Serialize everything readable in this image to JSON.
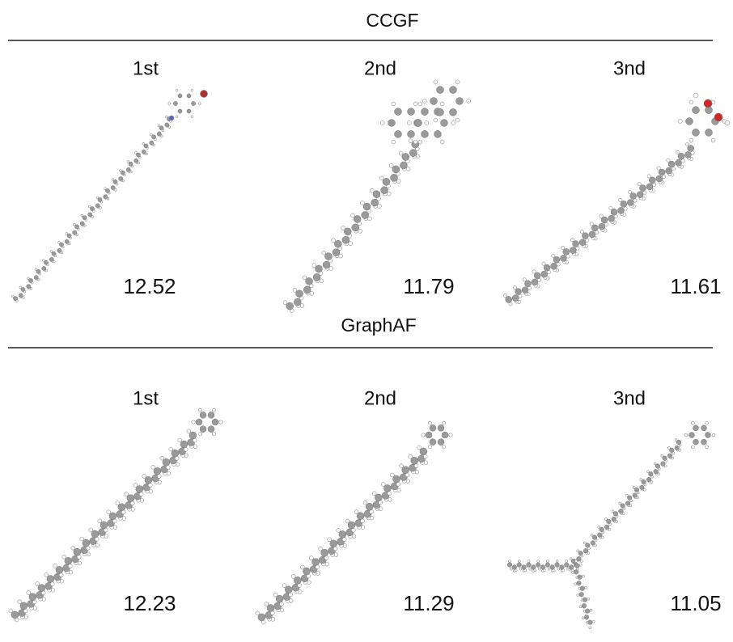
{
  "sections": [
    {
      "title": "CCGF",
      "items": [
        {
          "rank": "1st",
          "score": 12.52
        },
        {
          "rank": "2nd",
          "score": 11.79
        },
        {
          "rank": "3nd",
          "score": 11.61
        }
      ]
    },
    {
      "title": "GraphAF",
      "items": [
        {
          "rank": "1st",
          "score": 12.23
        },
        {
          "rank": "2nd",
          "score": 11.29
        },
        {
          "rank": "3nd",
          "score": 11.05
        }
      ]
    }
  ]
}
